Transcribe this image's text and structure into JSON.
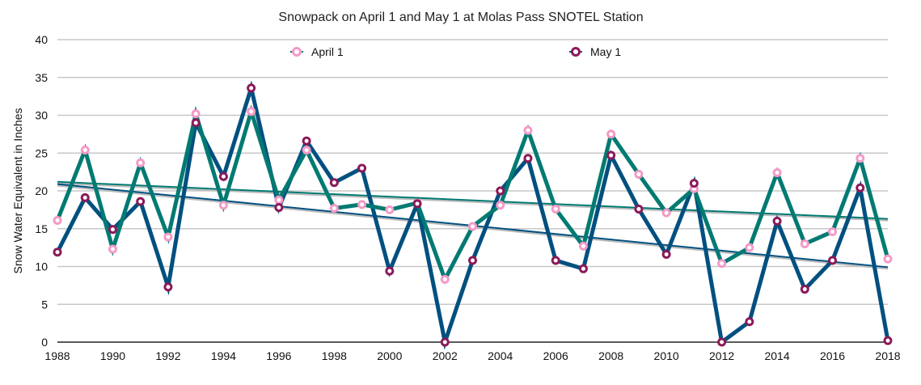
{
  "chart_data": {
    "type": "line",
    "title": "Snowpack on April 1 and May 1 at Molas Pass SNOTEL Station",
    "xlabel": "",
    "ylabel": "Snow Water Equivalent in Inches",
    "xlim": [
      1988,
      2018
    ],
    "ylim": [
      0,
      40
    ],
    "x_ticks": [
      1988,
      1990,
      1992,
      1994,
      1996,
      1998,
      2000,
      2002,
      2004,
      2006,
      2008,
      2010,
      2012,
      2014,
      2016,
      2018
    ],
    "y_ticks": [
      0,
      5,
      10,
      15,
      20,
      25,
      30,
      35,
      40
    ],
    "grid": true,
    "legend_placement": "top",
    "x": [
      1988,
      1989,
      1990,
      1991,
      1992,
      1993,
      1994,
      1995,
      1996,
      1997,
      1998,
      1999,
      2000,
      2001,
      2002,
      2003,
      2004,
      2005,
      2006,
      2007,
      2008,
      2009,
      2010,
      2011,
      2012,
      2013,
      2014,
      2015,
      2016,
      2017,
      2018
    ],
    "series": [
      {
        "name": "April 1",
        "line_color": "#007a72",
        "marker_color": "#f49ac8",
        "values": [
          16.1,
          25.4,
          12.3,
          23.7,
          13.9,
          30.2,
          18.1,
          30.5,
          18.8,
          25.4,
          17.7,
          18.2,
          17.5,
          18.4,
          8.3,
          15.3,
          18.1,
          28.0,
          17.6,
          12.7,
          27.5,
          22.2,
          17.1,
          20.3,
          10.4,
          12.5,
          22.4,
          13.0,
          14.6,
          24.3,
          11.0
        ],
        "trend": [
          21.2,
          16.3
        ]
      },
      {
        "name": "May 1",
        "line_color": "#00507f",
        "marker_color": "#8b1a5a",
        "values": [
          11.9,
          19.1,
          14.9,
          18.6,
          7.3,
          29.0,
          21.9,
          33.6,
          17.8,
          26.6,
          21.1,
          23.0,
          9.4,
          18.3,
          0.0,
          10.8,
          20.0,
          24.3,
          10.8,
          9.7,
          24.7,
          17.6,
          11.6,
          21.0,
          0.0,
          2.7,
          16.0,
          7.0,
          10.8,
          20.4,
          0.2
        ],
        "trend": [
          20.9,
          9.9
        ]
      }
    ]
  }
}
